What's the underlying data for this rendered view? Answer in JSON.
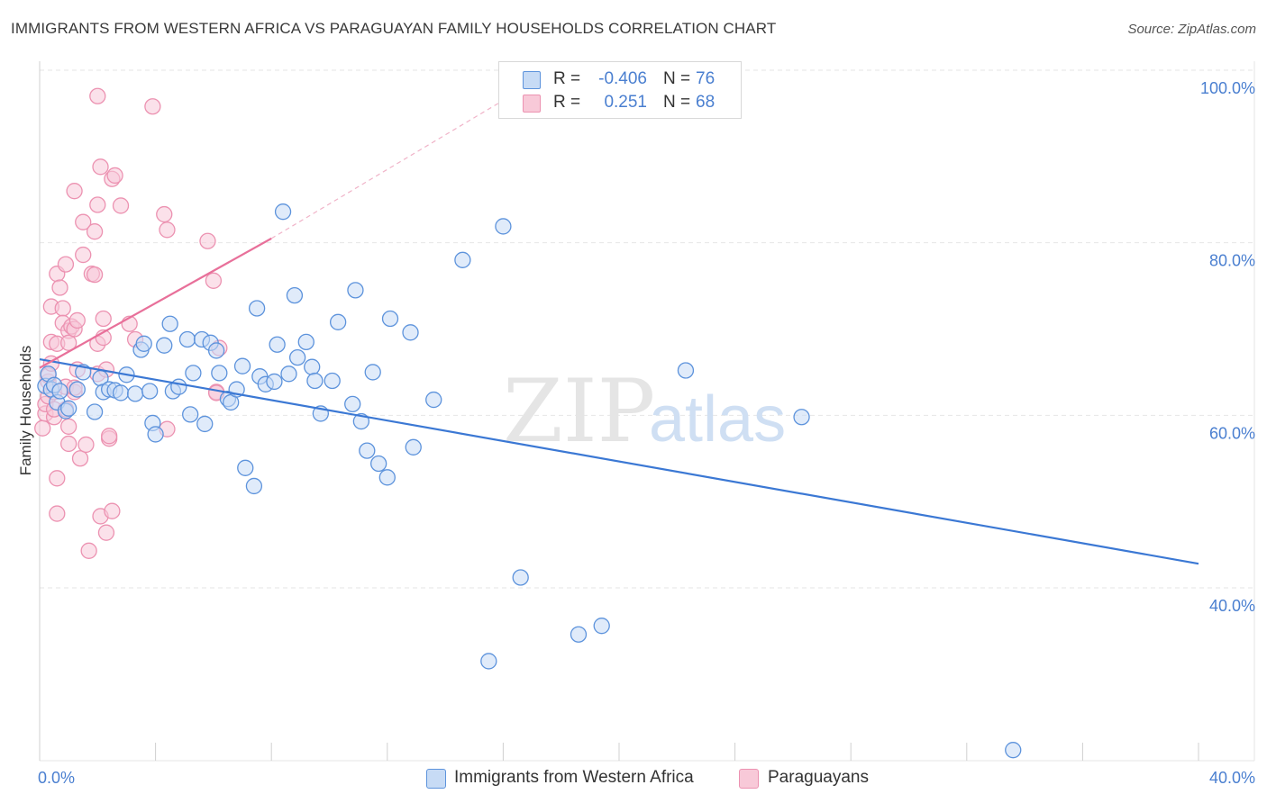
{
  "title": "IMMIGRANTS FROM WESTERN AFRICA VS PARAGUAYAN FAMILY HOUSEHOLDS CORRELATION CHART",
  "source": "Source: ZipAtlas.com",
  "watermark": {
    "zip": "ZIP",
    "atlas": "atlas"
  },
  "colors": {
    "blue": "#3b78d4",
    "blue_fill": "#c7dbf5",
    "blue_stroke": "#5d93dc",
    "pink": "#e8709a",
    "pink_fill": "#f8c9d8",
    "pink_stroke": "#ec92b1",
    "grid": "#e6e6e6",
    "tick_text": "#4a7fd0"
  },
  "legend_top": [
    {
      "r_label": "R =",
      "r_value": "-0.406",
      "n_label": "N =",
      "n_value": "76"
    },
    {
      "r_label": "R =",
      "r_value": "0.251",
      "n_label": "N =",
      "n_value": "68"
    }
  ],
  "legend_bottom": [
    {
      "label": "Immigrants from Western Africa"
    },
    {
      "label": "Paraguayans"
    }
  ],
  "chart_data": {
    "type": "scatter",
    "title": "IMMIGRANTS FROM WESTERN AFRICA VS PARAGUAYAN FAMILY HOUSEHOLDS CORRELATION CHART",
    "xlabel": "",
    "ylabel": "Family Households",
    "xlim": [
      0,
      40
    ],
    "ylim": [
      20,
      100
    ],
    "x_ticks_labels": [
      "0.0%",
      "40.0%"
    ],
    "y_tick_values": [
      40,
      60,
      80,
      100
    ],
    "y_tick_labels": [
      "40.0%",
      "60.0%",
      "80.0%",
      "100.0%"
    ],
    "grid": true,
    "series": [
      {
        "name": "Immigrants from Western Africa",
        "color": "#3b78d4",
        "r": -0.406,
        "n": 76,
        "trend": {
          "x": [
            0,
            40
          ],
          "y": [
            66.5,
            42.8
          ]
        },
        "points": [
          [
            0.2,
            63.4
          ],
          [
            0.3,
            64.8
          ],
          [
            0.4,
            63.0
          ],
          [
            0.5,
            63.5
          ],
          [
            0.6,
            61.5
          ],
          [
            0.7,
            62.8
          ],
          [
            0.9,
            60.5
          ],
          [
            1.0,
            60.8
          ],
          [
            1.3,
            63.0
          ],
          [
            1.5,
            65.0
          ],
          [
            1.9,
            60.4
          ],
          [
            2.1,
            64.3
          ],
          [
            2.2,
            62.7
          ],
          [
            2.4,
            63.0
          ],
          [
            2.6,
            62.9
          ],
          [
            2.8,
            62.6
          ],
          [
            3.0,
            64.7
          ],
          [
            3.3,
            62.5
          ],
          [
            3.5,
            67.6
          ],
          [
            3.6,
            68.3
          ],
          [
            3.8,
            62.8
          ],
          [
            3.9,
            59.1
          ],
          [
            4.0,
            57.8
          ],
          [
            4.3,
            68.1
          ],
          [
            4.5,
            70.6
          ],
          [
            4.6,
            62.8
          ],
          [
            4.8,
            63.3
          ],
          [
            5.1,
            68.8
          ],
          [
            5.2,
            60.1
          ],
          [
            5.3,
            64.9
          ],
          [
            5.6,
            68.8
          ],
          [
            5.7,
            59.0
          ],
          [
            5.9,
            68.4
          ],
          [
            6.1,
            67.5
          ],
          [
            6.2,
            64.9
          ],
          [
            6.5,
            61.9
          ],
          [
            6.6,
            61.5
          ],
          [
            6.8,
            63.0
          ],
          [
            7.0,
            65.7
          ],
          [
            7.1,
            53.9
          ],
          [
            7.4,
            51.8
          ],
          [
            7.5,
            72.4
          ],
          [
            7.6,
            64.5
          ],
          [
            7.8,
            63.6
          ],
          [
            8.1,
            63.9
          ],
          [
            8.2,
            68.2
          ],
          [
            8.4,
            83.6
          ],
          [
            8.6,
            64.8
          ],
          [
            8.8,
            73.9
          ],
          [
            8.9,
            66.7
          ],
          [
            9.2,
            68.5
          ],
          [
            9.4,
            65.6
          ],
          [
            9.5,
            64.0
          ],
          [
            9.7,
            60.2
          ],
          [
            10.1,
            64.0
          ],
          [
            10.3,
            70.8
          ],
          [
            10.8,
            61.3
          ],
          [
            10.9,
            74.5
          ],
          [
            11.1,
            59.3
          ],
          [
            11.3,
            55.9
          ],
          [
            11.5,
            65.0
          ],
          [
            11.7,
            54.4
          ],
          [
            12.0,
            52.8
          ],
          [
            12.1,
            71.2
          ],
          [
            12.8,
            69.6
          ],
          [
            12.9,
            56.3
          ],
          [
            13.6,
            61.8
          ],
          [
            14.6,
            78.0
          ],
          [
            15.5,
            31.5
          ],
          [
            16.0,
            81.9
          ],
          [
            16.6,
            41.2
          ],
          [
            18.6,
            34.6
          ],
          [
            19.4,
            35.6
          ],
          [
            22.3,
            65.2
          ],
          [
            26.3,
            59.8
          ],
          [
            33.6,
            21.2
          ]
        ]
      },
      {
        "name": "Paraguayans",
        "color": "#e8709a",
        "r": 0.251,
        "n": 68,
        "trend": {
          "x": [
            0,
            8
          ],
          "y": [
            65.5,
            80.5
          ]
        },
        "trend_extension": {
          "x": [
            8,
            16
          ],
          "y": [
            80.5,
            96.5
          ]
        },
        "points": [
          [
            0.1,
            58.5
          ],
          [
            0.2,
            60.2
          ],
          [
            0.2,
            61.3
          ],
          [
            0.3,
            62.2
          ],
          [
            0.3,
            63.9
          ],
          [
            0.3,
            64.6
          ],
          [
            0.4,
            66.0
          ],
          [
            0.4,
            68.5
          ],
          [
            0.4,
            72.6
          ],
          [
            0.5,
            59.8
          ],
          [
            0.5,
            60.7
          ],
          [
            0.5,
            62.7
          ],
          [
            0.6,
            68.3
          ],
          [
            0.6,
            76.4
          ],
          [
            0.6,
            52.7
          ],
          [
            0.6,
            48.6
          ],
          [
            0.7,
            74.8
          ],
          [
            0.8,
            72.4
          ],
          [
            0.8,
            70.7
          ],
          [
            0.9,
            77.5
          ],
          [
            0.9,
            63.3
          ],
          [
            0.9,
            60.7
          ],
          [
            1.0,
            69.8
          ],
          [
            1.0,
            68.4
          ],
          [
            1.0,
            58.7
          ],
          [
            1.0,
            56.7
          ],
          [
            1.1,
            70.3
          ],
          [
            1.2,
            70.0
          ],
          [
            1.2,
            62.7
          ],
          [
            1.2,
            63.2
          ],
          [
            1.2,
            86.0
          ],
          [
            1.3,
            71.0
          ],
          [
            1.3,
            65.3
          ],
          [
            1.4,
            55.0
          ],
          [
            1.5,
            82.4
          ],
          [
            1.5,
            78.6
          ],
          [
            1.6,
            56.6
          ],
          [
            1.7,
            44.3
          ],
          [
            1.8,
            76.4
          ],
          [
            1.9,
            81.3
          ],
          [
            1.9,
            76.3
          ],
          [
            2.0,
            84.4
          ],
          [
            2.0,
            68.3
          ],
          [
            2.0,
            97.0
          ],
          [
            2.0,
            64.8
          ],
          [
            2.1,
            88.8
          ],
          [
            2.1,
            48.3
          ],
          [
            2.2,
            69.0
          ],
          [
            2.2,
            71.2
          ],
          [
            2.3,
            65.3
          ],
          [
            2.3,
            46.4
          ],
          [
            2.4,
            57.3
          ],
          [
            2.4,
            57.6
          ],
          [
            2.5,
            87.4
          ],
          [
            2.5,
            48.9
          ],
          [
            2.6,
            87.8
          ],
          [
            2.8,
            84.3
          ],
          [
            3.1,
            70.6
          ],
          [
            3.3,
            68.8
          ],
          [
            3.9,
            95.8
          ],
          [
            4.3,
            83.3
          ],
          [
            4.4,
            81.5
          ],
          [
            4.4,
            58.4
          ],
          [
            5.8,
            80.2
          ],
          [
            6.0,
            75.6
          ],
          [
            6.1,
            62.7
          ],
          [
            6.1,
            62.6
          ],
          [
            6.2,
            67.8
          ]
        ]
      }
    ]
  }
}
